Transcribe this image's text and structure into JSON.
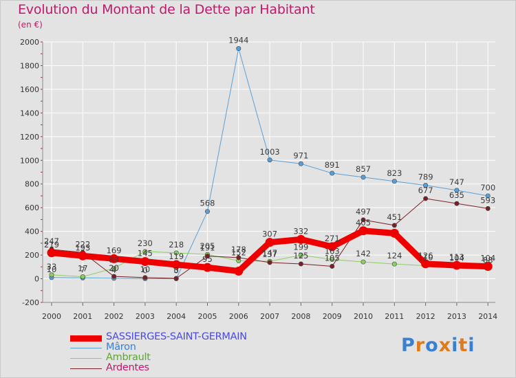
{
  "title": "Evolution du Montant de la Dette par Habitant",
  "subtitle": "(en €)",
  "logo": {
    "letters": [
      "P",
      "r",
      "o",
      "x",
      "i",
      "t",
      "i"
    ],
    "colors": [
      "#3a7fd0",
      "#e07a1a",
      "#3a7fd0",
      "#e07a1a",
      "#3a7fd0",
      "#e07a1a",
      "#3a7fd0"
    ]
  },
  "chart_data": {
    "type": "line",
    "x": [
      "2000",
      "2001",
      "2002",
      "2003",
      "2004",
      "2005",
      "2006",
      "2007",
      "2008",
      "2009",
      "2010",
      "2011",
      "2012",
      "2013",
      "2014"
    ],
    "ylim": [
      -200,
      2000
    ],
    "yticks": [
      -200,
      0,
      200,
      400,
      600,
      800,
      1000,
      1200,
      1400,
      1600,
      1800,
      2000
    ],
    "series": [
      {
        "name": "SASSIERGES-SAINT-GERMAIN",
        "color": "#ee0000",
        "width": 9,
        "values": [
          219,
          193,
          169,
          145,
          119,
          95,
          64,
          307,
          332,
          271,
          405,
          384,
          126,
          113,
          104
        ],
        "labels": [
          "219",
          "193",
          "169",
          "145",
          "119",
          "95",
          "",
          "307",
          "332",
          "271",
          "405",
          "",
          "126",
          "113",
          "104"
        ]
      },
      {
        "name": "Mâron",
        "color": "#5a9fd6",
        "width": 1,
        "values": [
          10,
          7,
          4,
          0,
          0,
          568,
          1944,
          1003,
          971,
          891,
          857,
          823,
          789,
          747,
          700
        ],
        "labels": [
          "10",
          "7",
          "4",
          "0",
          "0",
          "568",
          "1944",
          "1003",
          "971",
          "891",
          "857",
          "823",
          "789",
          "747",
          "700"
        ]
      },
      {
        "name": "Ambrault",
        "color": "#8ccf5f",
        "width": 1,
        "values": [
          33,
          17,
          89,
          230,
          218,
          205,
          152,
          147,
          199,
          163,
          142,
          124,
          110,
          104,
          88
        ],
        "labels": [
          "33",
          "17",
          "89",
          "230",
          "218",
          "205",
          "152",
          "147",
          "199",
          "163",
          "142",
          "124",
          "110",
          "104",
          "88"
        ]
      },
      {
        "name": "Ardentes",
        "color": "#7a1f25",
        "width": 1,
        "values": [
          247,
          222,
          20,
          10,
          3,
          191,
          178,
          137,
          125,
          105,
          497,
          451,
          677,
          635,
          593
        ],
        "labels": [
          "247",
          "222",
          "20",
          "10",
          "3",
          "191",
          "178",
          "137",
          "125",
          "105",
          "497",
          "451",
          "677",
          "635",
          "593"
        ]
      }
    ]
  }
}
